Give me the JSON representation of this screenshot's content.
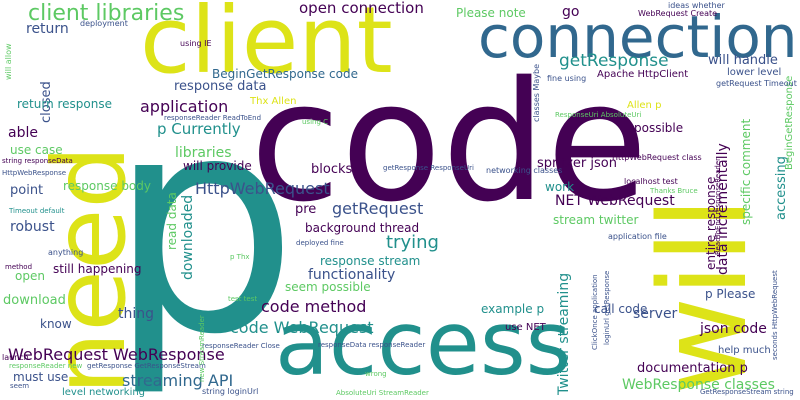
{
  "palette": {
    "purple": "#440154",
    "indigo": "#3b528b",
    "teal": "#21908c",
    "green": "#5dc963",
    "yellow": "#dde318"
  },
  "words": [
    "p",
    "code",
    "need",
    "client",
    "connection",
    "access",
    "will",
    "client libraries",
    "open connection",
    "getResponse",
    "will handle",
    "Please note",
    "go",
    "return",
    "closed",
    "able",
    "response data",
    "BeginGetResponse code",
    "application",
    "p Currently",
    "use case",
    "libraries",
    "will provide",
    "HttpWebRequest",
    "getRequest",
    "trying",
    "NET WebRequest",
    "stream twitter",
    "functionality",
    "code method",
    "code WebRequest",
    "WebRequest WebResponse",
    "streaming API",
    "Twitter streaming",
    "data incrementally",
    "accessing",
    "specific comment",
    "entire response",
    "json code",
    "server",
    "documentation p",
    "WebResponse classes",
    "call code",
    "p Please",
    "spritzer json",
    "possible",
    "robust",
    "download",
    "know",
    "thing",
    "must use",
    "open",
    "still happening",
    "point",
    "response body",
    "return response",
    "downloaded",
    "read data",
    "background thread",
    "response stream",
    "seem possible",
    "example p",
    "use NET",
    "help much",
    "work",
    "blocks",
    "pre",
    "Apache HttpClient",
    "BeginGetResponse",
    "lower level",
    "Allen p",
    "Thx Allen",
    "level networking",
    "deployment",
    "using IE",
    "will allow",
    "HttpWebRequest class",
    "localhost test",
    "Thanks Bruce",
    "application file",
    "getRequest Timeout",
    "WebRequest Create",
    "ideas whether",
    "fine using",
    "classes Maybe",
    "networking classes",
    "Timeout default",
    "anything",
    "method",
    "launch",
    "seem",
    "string responseData",
    "deployed fine",
    "p Thx",
    "test test",
    "responseReader ReadToEnd",
    "responseData responseReader",
    "responseReader Close",
    "getResponse GetResponseStream",
    "AbsoluteUri StreamReader",
    "string loginUrl",
    "wrong",
    "ClickOnce application",
    "loginUrl getResponse",
    "seconds HttpWebRequest",
    "GetResponseStream string",
    "using C",
    "new StreamReader",
    "HttpWebResponse",
    "getResponse ResponseUri",
    "ReadToEnd responseReader",
    "responseReader new",
    "ResponseUri AbsoluteUri"
  ]
}
